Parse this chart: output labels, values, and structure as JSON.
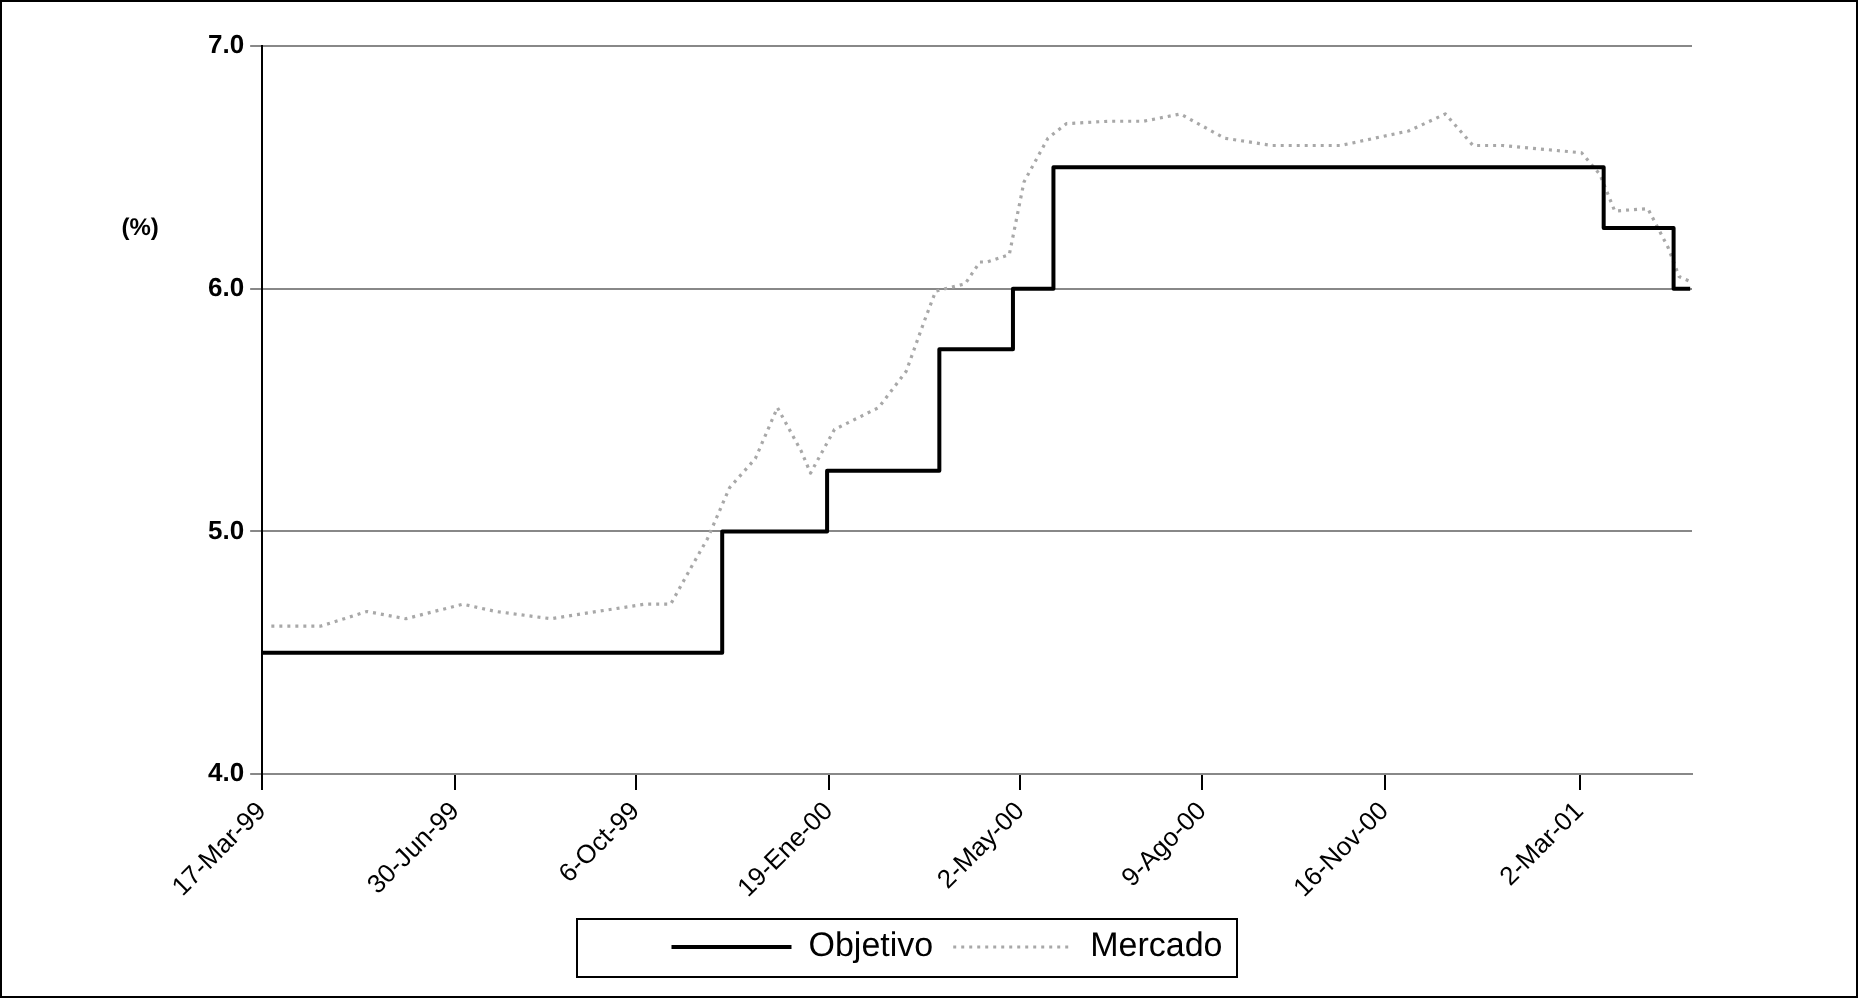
{
  "chart_data": {
    "type": "line",
    "ylabel": "(%)",
    "ylim": [
      4,
      7
    ],
    "yticks": [
      {
        "value": 4,
        "label": "4.0"
      },
      {
        "value": 5,
        "label": "5.0"
      },
      {
        "value": 6,
        "label": "6.0"
      },
      {
        "value": 7,
        "label": "7.0"
      }
    ],
    "xlim": [
      "1999-03-17",
      "2001-05-02"
    ],
    "xticks": [
      {
        "value": "1999-03-17",
        "label": "17-Mar-99"
      },
      {
        "value": "1999-06-30",
        "label": "30-Jun-99"
      },
      {
        "value": "1999-10-06",
        "label": "6-Oct-99"
      },
      {
        "value": "2000-01-19",
        "label": "19-Ene-00"
      },
      {
        "value": "2000-05-02",
        "label": "2-May-00"
      },
      {
        "value": "2000-08-09",
        "label": "9-Ago-00"
      },
      {
        "value": "2000-11-16",
        "label": "16-Nov-00"
      },
      {
        "value": "2001-03-02",
        "label": "2-Mar-01"
      }
    ],
    "grid": "y",
    "legend": "bottom",
    "marker": "none",
    "series": [
      {
        "name": "Objetivo",
        "type": "step",
        "color": "#000000",
        "line_style": "solid",
        "x": [
          "1999-03-17",
          "1999-11-22",
          "2000-01-18",
          "2000-03-19",
          "2000-04-28",
          "2000-05-20",
          "2001-03-15",
          "2001-04-22",
          "2001-05-01"
        ],
        "values": [
          4.5,
          5.0,
          5.25,
          5.75,
          6.0,
          6.5,
          6.25,
          6.0,
          6.0
        ]
      },
      {
        "name": "Mercado",
        "type": "line",
        "color": "#a8a8a8",
        "line_style": "dotted",
        "x": [
          "1999-03-22",
          "1999-04-18",
          "1999-05-13",
          "1999-06-03",
          "1999-07-04",
          "1999-07-22",
          "1999-08-21",
          "1999-09-15",
          "1999-10-11",
          "1999-10-25",
          "1999-11-05",
          "1999-11-14",
          "1999-11-26",
          "1999-12-10",
          "1999-12-22",
          "2000-01-04",
          "2000-01-09",
          "2000-01-22",
          "2000-02-15",
          "2000-03-01",
          "2000-03-11",
          "2000-03-17",
          "2000-04-02",
          "2000-04-10",
          "2000-04-14",
          "2000-04-26",
          "2000-05-04",
          "2000-05-17",
          "2000-05-27",
          "2000-06-19",
          "2000-07-08",
          "2000-07-28",
          "2000-08-21",
          "2000-09-16",
          "2000-10-23",
          "2000-11-29",
          "2000-12-19",
          "2001-01-03",
          "2001-01-19",
          "2001-03-03",
          "2001-03-13",
          "2001-03-21",
          "2001-04-08",
          "2001-04-19",
          "2001-04-25",
          "2001-05-01"
        ],
        "values": [
          4.61,
          4.61,
          4.67,
          4.64,
          4.7,
          4.67,
          4.64,
          4.67,
          4.7,
          4.7,
          4.85,
          4.97,
          5.18,
          5.3,
          5.51,
          5.33,
          5.24,
          5.42,
          5.51,
          5.66,
          5.87,
          5.99,
          6.02,
          6.11,
          6.11,
          6.14,
          6.44,
          6.62,
          6.68,
          6.69,
          6.69,
          6.72,
          6.62,
          6.59,
          6.59,
          6.65,
          6.72,
          6.59,
          6.59,
          6.56,
          6.47,
          6.32,
          6.33,
          6.17,
          6.05,
          6.03
        ]
      }
    ]
  }
}
